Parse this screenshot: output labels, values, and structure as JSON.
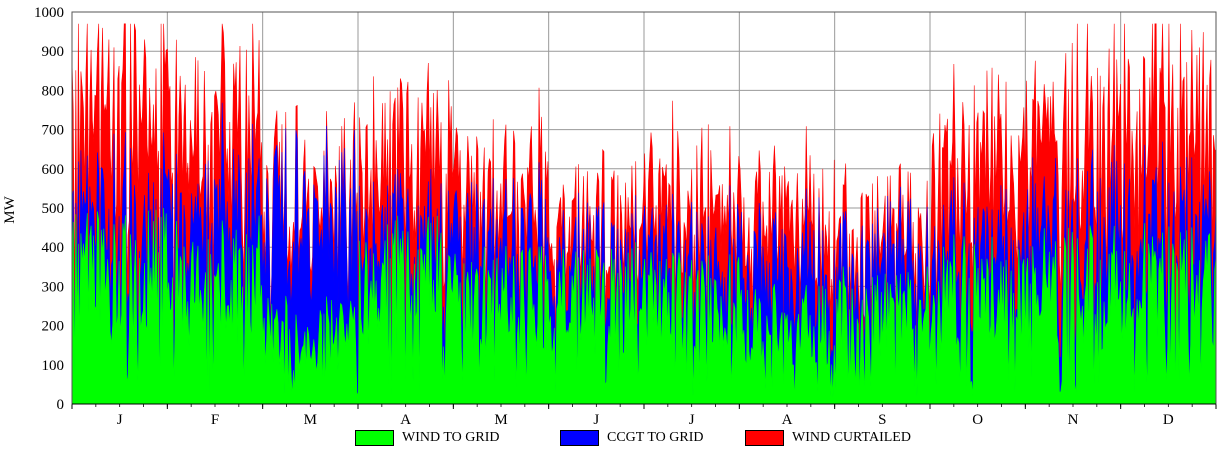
{
  "chart_data": {
    "type": "area",
    "title": "",
    "xlabel": "",
    "ylabel": "MW",
    "ylim": [
      0,
      1000
    ],
    "yticks": [
      0,
      100,
      200,
      300,
      400,
      500,
      600,
      700,
      800,
      900,
      1000
    ],
    "grid": true,
    "stacked": true,
    "legend_position": "bottom",
    "categories": [
      "J",
      "F",
      "M",
      "A",
      "M",
      "J",
      "J",
      "A",
      "S",
      "O",
      "N",
      "D"
    ],
    "series": [
      {
        "name": "WIND TO GRID",
        "color": "#00ff00",
        "values": [
          330,
          320,
          180,
          310,
          260,
          270,
          250,
          200,
          230,
          280,
          300,
          300
        ]
      },
      {
        "name": "CCGT TO GRID",
        "color": "#0000ff",
        "values": [
          150,
          200,
          320,
          120,
          150,
          110,
          120,
          160,
          150,
          140,
          150,
          160
        ]
      },
      {
        "name": "WIND CURTAILED",
        "color": "#ff0000",
        "values": [
          300,
          240,
          60,
          220,
          130,
          100,
          160,
          150,
          90,
          240,
          260,
          300
        ]
      }
    ]
  }
}
